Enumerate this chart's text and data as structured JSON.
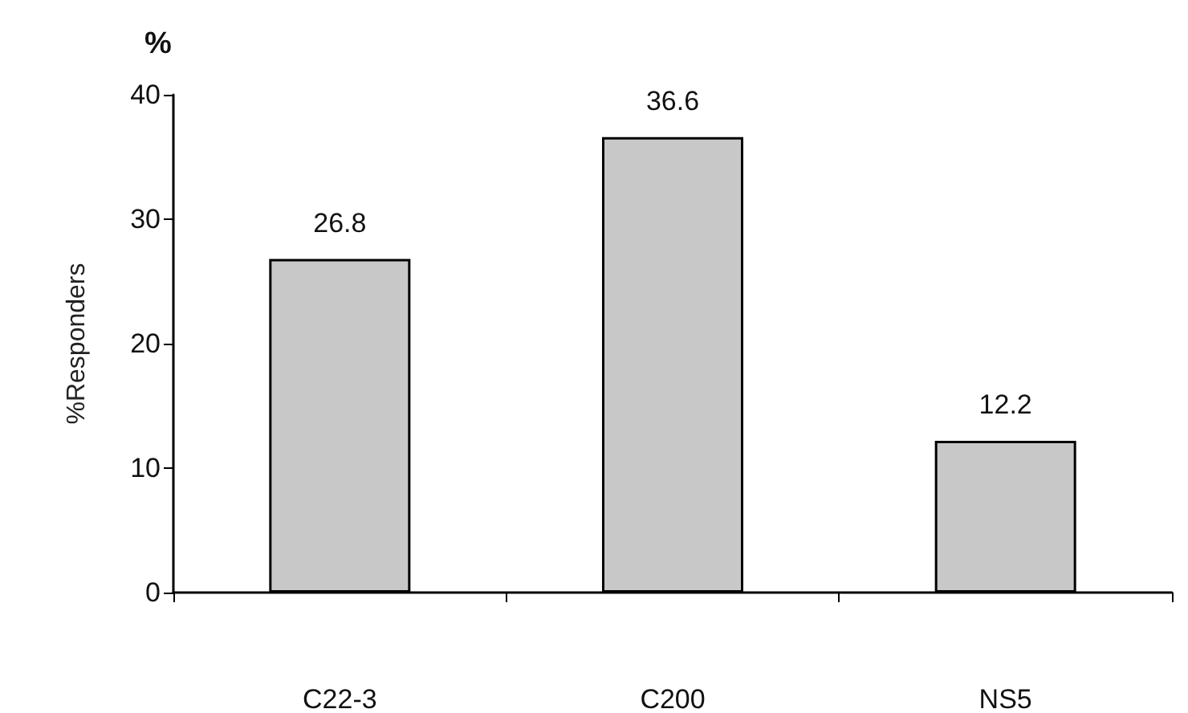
{
  "chart_data": {
    "type": "bar",
    "ylabel": "%Responders",
    "annotations": [
      "%"
    ],
    "categories": [
      "C22-3",
      "C200",
      "NS5"
    ],
    "values": [
      26.8,
      36.6,
      12.2
    ],
    "color": "#c8c8c8",
    "ylim": [
      0,
      40
    ],
    "yticks": [
      0,
      10,
      20,
      30,
      40
    ],
    "grid": false,
    "data_labels": true
  }
}
